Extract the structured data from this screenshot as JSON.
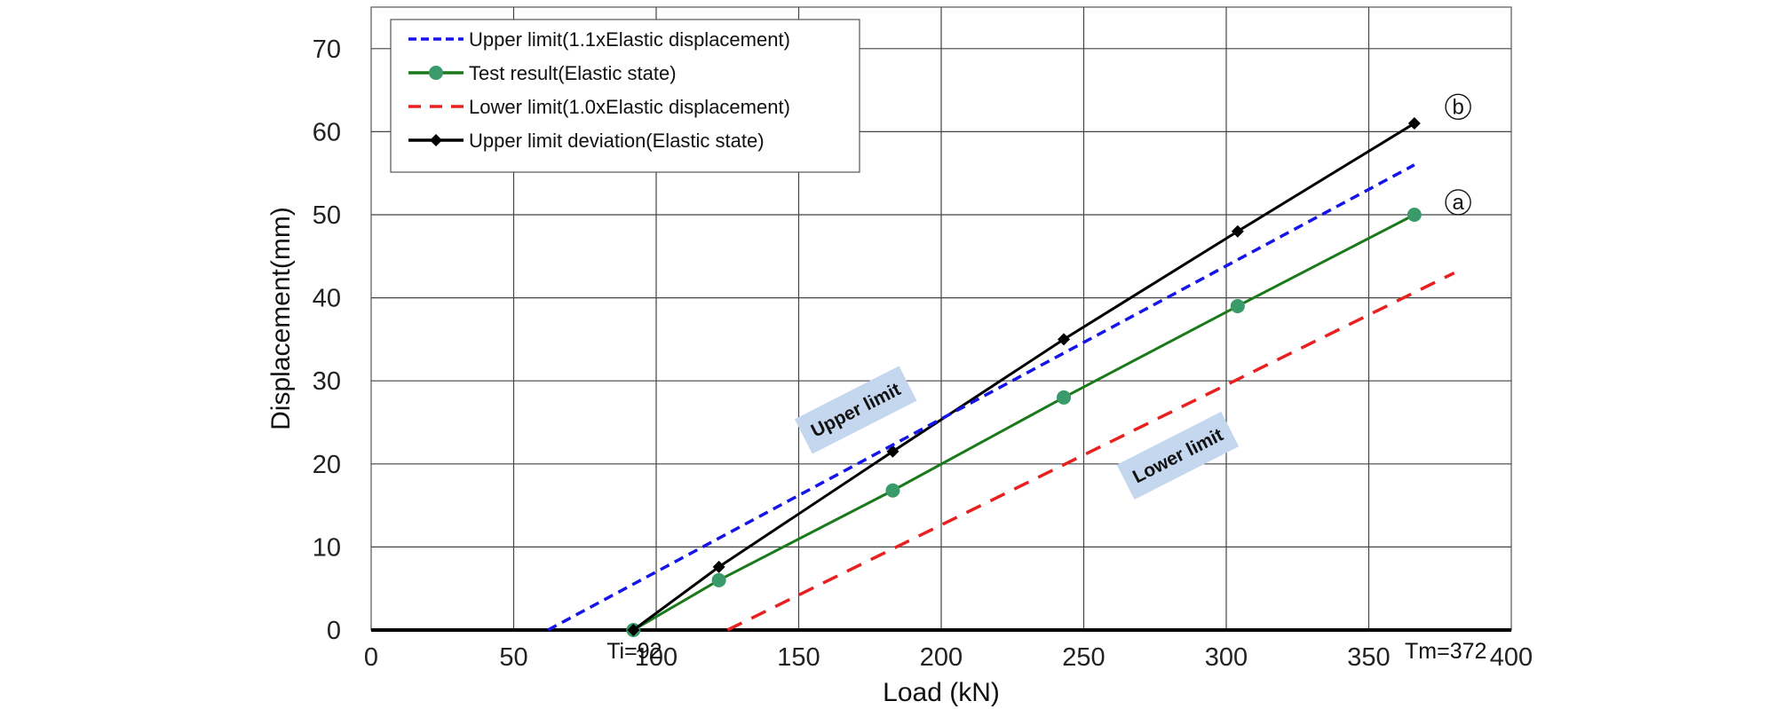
{
  "chart_data": {
    "type": "line",
    "xlabel": "Load (kN)",
    "ylabel": "Displacement(mm)",
    "xlim": [
      0,
      400
    ],
    "ylim": [
      0,
      75
    ],
    "xticks": [
      0,
      50,
      100,
      150,
      200,
      250,
      300,
      350,
      400
    ],
    "yticks": [
      0,
      10,
      20,
      30,
      40,
      50,
      60,
      70
    ],
    "grid": true,
    "legend_position": "top-left",
    "series": [
      {
        "name": "Upper limit(1.1xElastic displacement)",
        "style": "dashed",
        "color": "#1515e8",
        "marker": "none",
        "x": [
          62,
          366
        ],
        "y": [
          0,
          56
        ]
      },
      {
        "name": "Test result(Elastic state)",
        "style": "solid",
        "color": "#1a7a1a",
        "marker": "circle",
        "marker_color": "#3a9a6a",
        "x": [
          92,
          122,
          183,
          243,
          304,
          366
        ],
        "y": [
          0,
          6,
          16.8,
          28,
          39,
          50
        ]
      },
      {
        "name": "Lower limit(1.0xElastic displacement)",
        "style": "dashed",
        "color": "#e82020",
        "marker": "none",
        "x": [
          125,
          380
        ],
        "y": [
          0,
          43
        ]
      },
      {
        "name": "Upper limit deviation(Elastic state)",
        "style": "solid",
        "color": "#000000",
        "marker": "diamond",
        "marker_color": "#000000",
        "x": [
          92,
          122,
          183,
          243,
          304,
          366
        ],
        "y": [
          0,
          7.6,
          21.5,
          35,
          48,
          61
        ]
      }
    ],
    "annotations": [
      {
        "text": "Ti=92",
        "x": 82,
        "y": -2
      },
      {
        "text": "Tm=372",
        "x": 362,
        "y": -2
      }
    ],
    "circle_labels": [
      {
        "text": "b",
        "x": 372,
        "y": 63
      },
      {
        "text": "a",
        "x": 372,
        "y": 51.5
      }
    ],
    "shaded_labels": [
      {
        "text": "Upper limit",
        "x": 170,
        "y": 26.5,
        "angle": -27
      },
      {
        "text": "Lower limit",
        "x": 283,
        "y": 21,
        "angle": -27
      }
    ]
  }
}
